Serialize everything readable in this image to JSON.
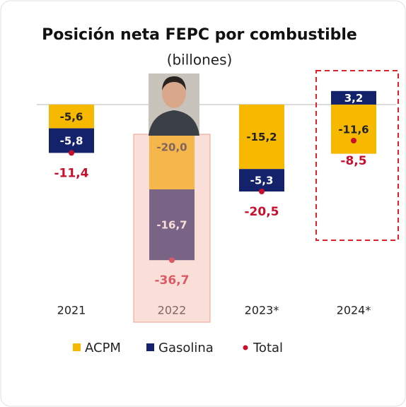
{
  "chart_data": {
    "type": "bar",
    "stacked": true,
    "title": "Posición neta FEPC por combustible",
    "subtitle": "(billones)",
    "categories": [
      "2021",
      "2022",
      "2023*",
      "2024*"
    ],
    "series": [
      {
        "name": "ACPM",
        "color": "#f6b900",
        "values": [
          -5.6,
          -20.0,
          -15.2,
          -11.6
        ],
        "value_labels": [
          "-5,6",
          "-20,0",
          "-15,2",
          "-11,6"
        ]
      },
      {
        "name": "Gasolina",
        "color": "#14226b",
        "values": [
          -5.8,
          -16.7,
          -5.3,
          3.2
        ],
        "value_labels": [
          "-5,8",
          "-16,7",
          "-5,3",
          "3,2"
        ]
      },
      {
        "name": "Total",
        "type": "scatter",
        "color": "#c8102e",
        "values": [
          -11.4,
          -36.7,
          -20.5,
          -8.5
        ],
        "value_labels": [
          "-11,4",
          "-36,7",
          "-20,5",
          "-8,5"
        ]
      }
    ]
  }
}
